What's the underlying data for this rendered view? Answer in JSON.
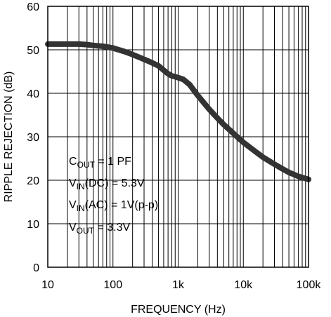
{
  "chart_data": {
    "type": "line",
    "xscale": "log",
    "xlabel": "FREQUENCY (Hz)",
    "ylabel": "RIPPLE REJECTION (dB)",
    "xlim": [
      10,
      100000
    ],
    "ylim": [
      0,
      60
    ],
    "grid": true,
    "x_ticks": [
      10,
      100,
      1000,
      10000,
      100000
    ],
    "x_tick_labels": [
      "10",
      "100",
      "1k",
      "10k",
      "100k"
    ],
    "y_ticks": [
      0,
      10,
      20,
      30,
      40,
      50,
      60
    ],
    "y_tick_labels": [
      "0",
      "10",
      "20",
      "30",
      "40",
      "50",
      "60"
    ],
    "series": [
      {
        "color": "#333333",
        "x": [
          10,
          15,
          20,
          30,
          40,
          50,
          70,
          100,
          150,
          200,
          300,
          400,
          500,
          600,
          700,
          800,
          900,
          1000,
          1200,
          1500,
          2000,
          3000,
          4000,
          5000,
          7000,
          10000,
          15000,
          20000,
          30000,
          40000,
          50000,
          70000,
          100000
        ],
        "values": [
          51.3,
          51.3,
          51.3,
          51.3,
          51.2,
          51.0,
          50.8,
          50.4,
          49.6,
          48.9,
          47.8,
          47.0,
          46.3,
          45.3,
          44.5,
          44.0,
          43.8,
          43.6,
          43.2,
          42.0,
          39.5,
          36.3,
          34.3,
          32.8,
          30.8,
          28.7,
          26.7,
          25.3,
          23.7,
          22.6,
          21.8,
          20.9,
          20.2
        ]
      }
    ],
    "annotations": {
      "line1_main": "C",
      "line1_sub": "OUT",
      "line1_rest": " = 1 PF",
      "line2_main": "V",
      "line2_sub": "IN",
      "line2_rest": "(DC) = 5.3V",
      "line3_main": "V",
      "line3_sub": "IN",
      "line3_rest": "(AC) = 1V(p-p)",
      "line4_main": "V",
      "line4_sub": "OUT",
      "line4_rest": " = 3.3V"
    }
  }
}
